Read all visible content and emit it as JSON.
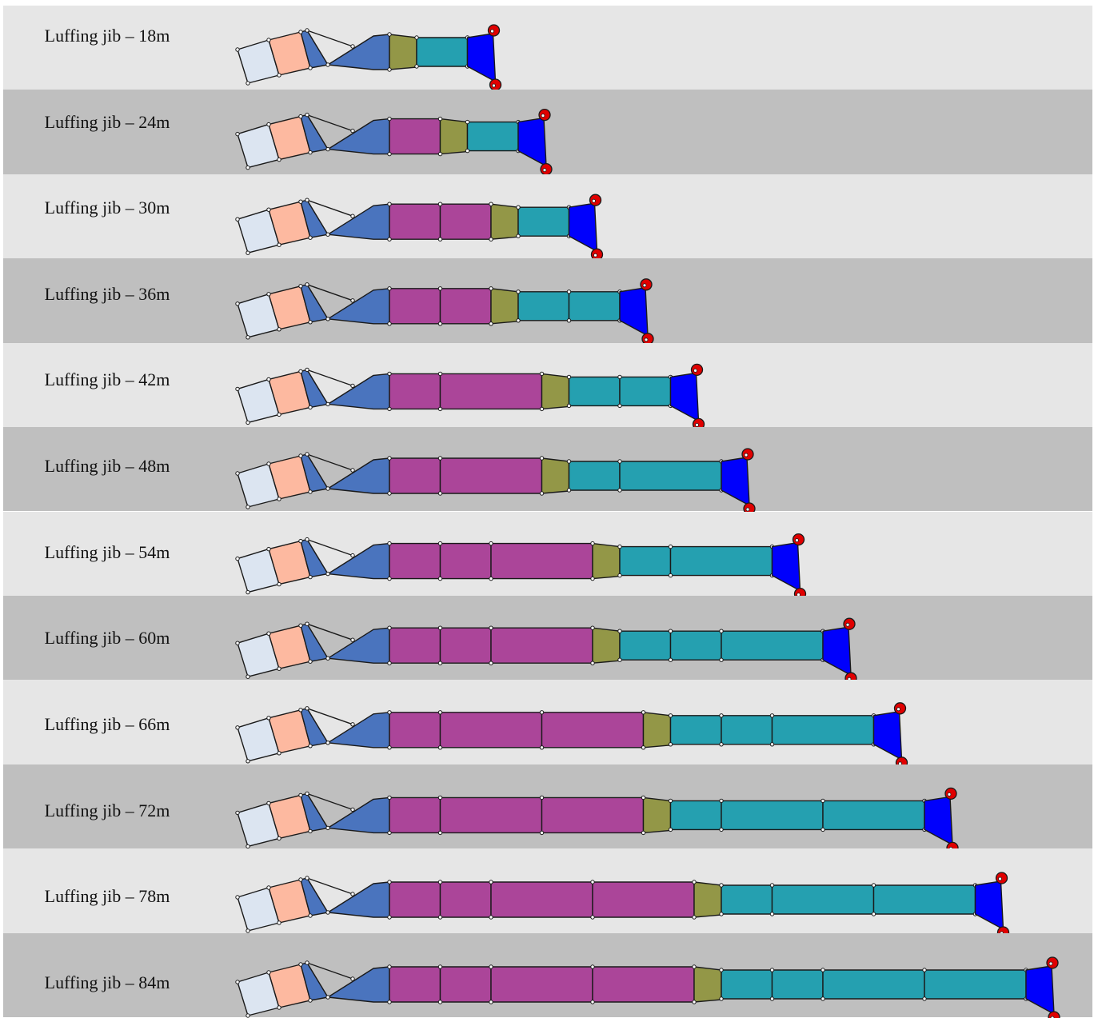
{
  "diagram": {
    "title": "",
    "row_colors": [
      "#e6e6e6",
      "#bfbfbf"
    ],
    "part_colors": {
      "counterjib": "#dce5f1",
      "counterweight_box": "#fdb9a0",
      "a_frame": "#4a74be",
      "jib_foot": "#4a74be",
      "jib_section_long": "#ab4599",
      "transition_section": "#939747",
      "jib_section_short": "#25a0b0",
      "jib_head": "#0000fc",
      "sheave": "#e00000"
    },
    "rows": [
      {
        "label": "Luffing jib – 18m",
        "long_sections": [],
        "short_sections": [
          1
        ]
      },
      {
        "label": "Luffing jib – 24m",
        "long_sections": [
          1
        ],
        "short_sections": [
          1
        ]
      },
      {
        "label": "Luffing jib – 30m",
        "long_sections": [
          1,
          1
        ],
        "short_sections": [
          1
        ]
      },
      {
        "label": "Luffing jib – 36m",
        "long_sections": [
          1,
          1
        ],
        "short_sections": [
          1,
          1
        ]
      },
      {
        "label": "Luffing jib – 42m",
        "long_sections": [
          1,
          2
        ],
        "short_sections": [
          1,
          1
        ]
      },
      {
        "label": "Luffing jib – 48m",
        "long_sections": [
          1,
          2
        ],
        "short_sections": [
          1,
          2
        ]
      },
      {
        "label": "Luffing jib – 54m",
        "long_sections": [
          1,
          1,
          2
        ],
        "short_sections": [
          1,
          2
        ]
      },
      {
        "label": "Luffing jib – 60m",
        "long_sections": [
          1,
          1,
          2
        ],
        "short_sections": [
          1,
          1,
          2
        ]
      },
      {
        "label": "Luffing jib – 66m",
        "long_sections": [
          1,
          2,
          2
        ],
        "short_sections": [
          1,
          1,
          2
        ]
      },
      {
        "label": "Luffing jib – 72m",
        "long_sections": [
          1,
          2,
          2
        ],
        "short_sections": [
          1,
          2,
          2
        ]
      },
      {
        "label": "Luffing jib – 78m",
        "long_sections": [
          1,
          1,
          2,
          2
        ],
        "short_sections": [
          1,
          2,
          2
        ]
      },
      {
        "label": "Luffing jib – 84m",
        "long_sections": [
          1,
          1,
          2,
          2
        ],
        "short_sections": [
          1,
          1,
          2,
          2
        ]
      }
    ]
  }
}
